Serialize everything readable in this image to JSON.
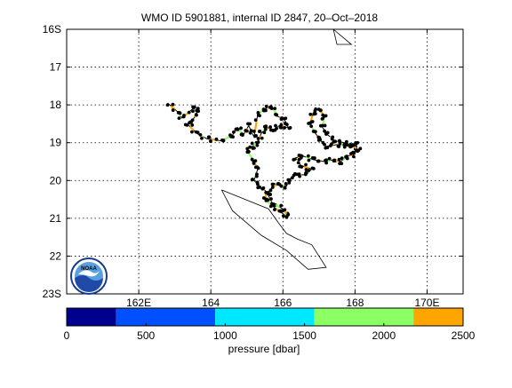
{
  "chart_data": {
    "type": "scatter",
    "title": "WMO ID 5901881, internal ID 2847, 20–Oct–2018",
    "x_axis": {
      "range": [
        160.0,
        171.0
      ],
      "ticks": [
        {
          "value": 162,
          "label": "162E"
        },
        {
          "value": 164,
          "label": "164"
        },
        {
          "value": 166,
          "label": "166"
        },
        {
          "value": 168,
          "label": "168"
        },
        {
          "value": 170,
          "label": "170E"
        }
      ]
    },
    "y_axis": {
      "range": [
        16.0,
        23.0
      ],
      "direction": "south-down",
      "ticks": [
        {
          "value": 16,
          "label": "16S"
        },
        {
          "value": 17,
          "label": "17"
        },
        {
          "value": 18,
          "label": "18"
        },
        {
          "value": 19,
          "label": "19"
        },
        {
          "value": 20,
          "label": "20"
        },
        {
          "value": 21,
          "label": "21"
        },
        {
          "value": 22,
          "label": "22"
        },
        {
          "value": 23,
          "label": "23S"
        }
      ]
    },
    "grid": true,
    "coastlines": [
      [
        [
          167.4,
          16.0
        ],
        [
          167.9,
          16.4
        ],
        [
          167.5,
          16.4
        ],
        [
          167.4,
          16.0
        ]
      ],
      [
        [
          164.3,
          20.25
        ],
        [
          165.6,
          20.75
        ],
        [
          165.9,
          21.15
        ],
        [
          166.1,
          21.4
        ],
        [
          166.4,
          21.55
        ],
        [
          166.8,
          21.7
        ],
        [
          167.2,
          22.3
        ],
        [
          166.7,
          22.35
        ],
        [
          166.1,
          21.85
        ],
        [
          165.4,
          21.45
        ],
        [
          164.6,
          20.8
        ],
        [
          164.3,
          20.25
        ]
      ]
    ],
    "trajectory": {
      "color": "#000000",
      "points": [
        [
          162.8,
          17.95
        ],
        [
          163.1,
          18.2
        ],
        [
          163.2,
          18.35
        ],
        [
          163.5,
          18.1
        ],
        [
          163.65,
          18.15
        ],
        [
          163.5,
          18.4
        ],
        [
          163.35,
          18.5
        ],
        [
          163.6,
          18.75
        ],
        [
          163.9,
          18.9
        ],
        [
          164.3,
          18.95
        ],
        [
          164.6,
          18.8
        ],
        [
          164.75,
          18.6
        ],
        [
          164.9,
          18.8
        ],
        [
          165.05,
          18.55
        ],
        [
          165.2,
          18.85
        ],
        [
          165.3,
          18.25
        ],
        [
          165.5,
          18.1
        ],
        [
          165.7,
          18.05
        ],
        [
          165.85,
          18.3
        ],
        [
          166.05,
          18.4
        ],
        [
          166.15,
          18.6
        ],
        [
          165.9,
          18.55
        ],
        [
          165.75,
          18.65
        ],
        [
          165.55,
          18.6
        ],
        [
          165.4,
          18.75
        ],
        [
          165.3,
          19.0
        ],
        [
          165.15,
          19.1
        ],
        [
          165.0,
          19.2
        ],
        [
          165.2,
          19.5
        ],
        [
          165.3,
          19.7
        ],
        [
          165.2,
          20.0
        ],
        [
          165.35,
          20.15
        ],
        [
          165.55,
          20.3
        ],
        [
          165.5,
          20.5
        ],
        [
          165.75,
          20.7
        ],
        [
          165.95,
          20.85
        ],
        [
          166.15,
          20.95
        ],
        [
          166.0,
          20.75
        ],
        [
          165.7,
          20.6
        ],
        [
          165.6,
          20.4
        ],
        [
          165.7,
          20.15
        ],
        [
          165.9,
          20.1
        ],
        [
          166.1,
          20.15
        ],
        [
          166.2,
          19.95
        ],
        [
          166.35,
          19.85
        ],
        [
          166.6,
          19.85
        ],
        [
          166.8,
          19.7
        ],
        [
          166.5,
          19.6
        ],
        [
          166.35,
          19.4
        ],
        [
          166.55,
          19.35
        ],
        [
          166.85,
          19.45
        ],
        [
          167.15,
          19.5
        ],
        [
          167.4,
          19.45
        ],
        [
          167.6,
          19.5
        ],
        [
          167.8,
          19.35
        ],
        [
          168.0,
          19.3
        ],
        [
          168.05,
          19.05
        ],
        [
          167.85,
          19.1
        ],
        [
          167.5,
          19.05
        ],
        [
          167.2,
          19.1
        ],
        [
          167.05,
          18.95
        ],
        [
          166.9,
          18.75
        ],
        [
          166.75,
          18.5
        ],
        [
          166.85,
          18.2
        ],
        [
          167.0,
          18.1
        ],
        [
          167.15,
          18.3
        ],
        [
          167.1,
          18.6
        ],
        [
          167.25,
          18.8
        ],
        [
          167.45,
          18.95
        ],
        [
          167.7,
          19.0
        ],
        [
          167.9,
          19.05
        ],
        [
          168.1,
          19.2
        ]
      ],
      "marker_colors": [
        "#FFA500",
        "#8CFF64"
      ]
    },
    "colorbar": {
      "label": "pressure [dbar]",
      "ticks": [
        0,
        500,
        1000,
        1500,
        2000,
        2500
      ],
      "range": [
        0,
        2500
      ],
      "bins": [
        {
          "from": 0,
          "to": 312,
          "color": "#00008F"
        },
        {
          "from": 312,
          "to": 937,
          "color": "#0050FF"
        },
        {
          "from": 937,
          "to": 1562,
          "color": "#00E8FF"
        },
        {
          "from": 1562,
          "to": 2187,
          "color": "#8CFF64"
        },
        {
          "from": 2187,
          "to": 2500,
          "color": "#FFA500"
        }
      ]
    }
  },
  "logo": {
    "text": "NOAA",
    "colors": {
      "ring": "#1a3c8c",
      "sky": "#5aa0e0",
      "wave": "#1f4aa8",
      "bird": "#ffffff"
    }
  }
}
